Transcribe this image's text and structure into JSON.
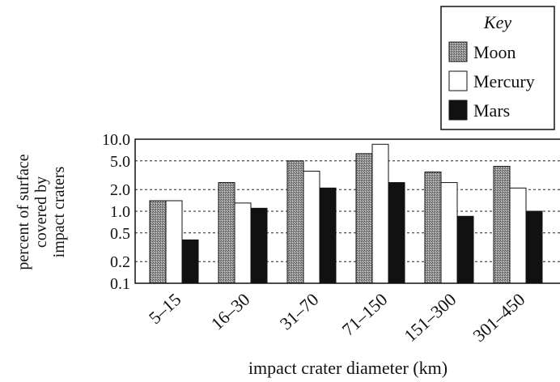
{
  "chart_data": {
    "type": "bar",
    "title": "",
    "xlabel": "impact crater diameter (km)",
    "ylabel_lines": [
      "percent of surface",
      "covered by",
      "impact craters"
    ],
    "yscale": "log",
    "ylim": [
      0.1,
      10.0
    ],
    "yticks": [
      0.1,
      0.2,
      0.5,
      1.0,
      2.0,
      5.0,
      10.0
    ],
    "ytick_labels": [
      "0.1",
      "0.2",
      "0.5",
      "1.0",
      "2.0",
      "5.0",
      "10.0"
    ],
    "grid": "horizontal dashed",
    "legend_position": "top-right",
    "categories": [
      "5–15",
      "16–30",
      "31–70",
      "71–150",
      "151–300",
      "301–450"
    ],
    "series": [
      {
        "name": "Moon",
        "color": "#8a8a8a",
        "pattern": "stippled gray",
        "values": [
          1.4,
          2.5,
          5.0,
          6.3,
          3.5,
          4.2
        ]
      },
      {
        "name": "Mercury",
        "color": "#ffffff",
        "pattern": "white",
        "values": [
          1.4,
          1.3,
          3.6,
          8.5,
          2.5,
          2.1
        ]
      },
      {
        "name": "Mars",
        "color": "#111111",
        "pattern": "black",
        "values": [
          0.4,
          1.1,
          2.1,
          2.5,
          0.85,
          1.0
        ]
      }
    ]
  },
  "legend": {
    "title": "Key"
  }
}
